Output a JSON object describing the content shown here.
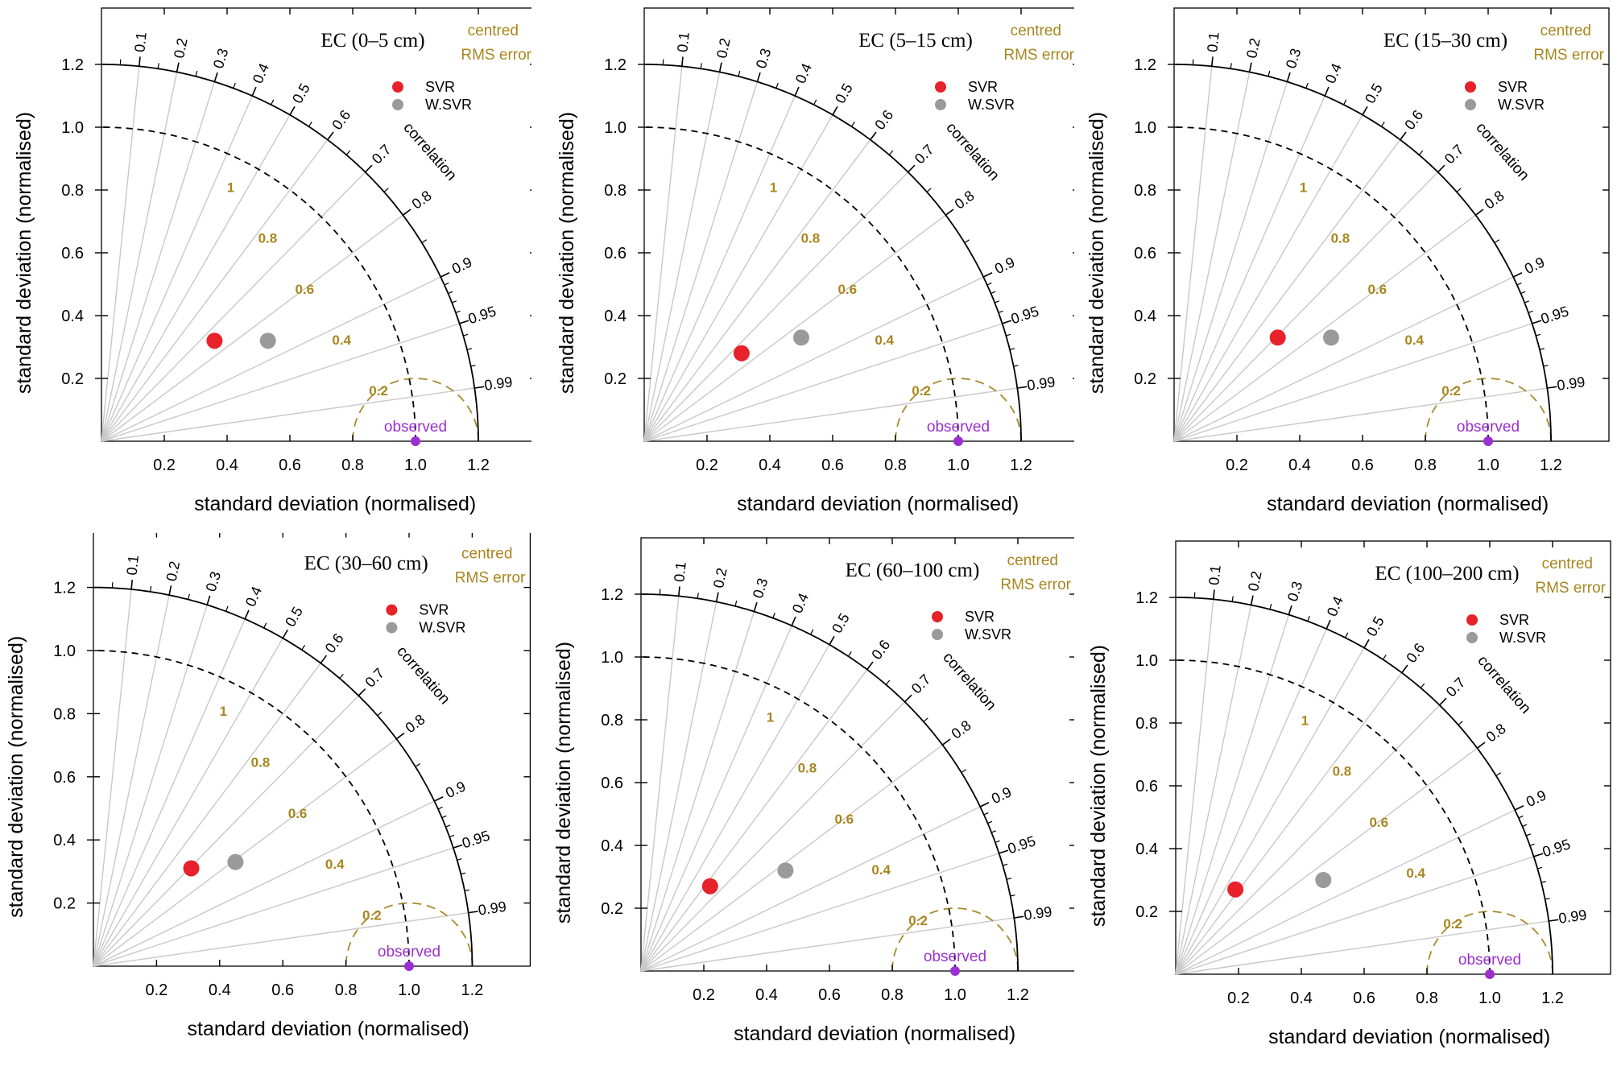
{
  "figure": {
    "legend": {
      "rms_title_line1": "centred",
      "rms_title_line2": "RMS error",
      "correlation_label": "correlation",
      "observed_label": "observed"
    },
    "colors": {
      "svr": "#e8222a",
      "wsvr": "#9a9a9a",
      "observed": "#9b30d0",
      "rms_contour": "#a88a2e",
      "rms_text": "#a8861e",
      "radial_line": "#c8c8c8",
      "axis": "#000000"
    }
  },
  "chart_data": [
    {
      "type": "scatter",
      "subtype": "taylor-diagram",
      "title": "EC (0–5 cm)",
      "xlabel": "standard deviation (normalised)",
      "ylabel": "standard deviation (normalised)",
      "xlim": [
        0,
        1.2
      ],
      "ylim": [
        0,
        1.2
      ],
      "xticks": [
        "0.2",
        "0.4",
        "0.6",
        "0.8",
        "1.0",
        "1.2"
      ],
      "yticks": [
        "0.2",
        "0.4",
        "0.6",
        "0.8",
        "1.0",
        "1.2"
      ],
      "correlation_ticks": [
        "0.1",
        "0.2",
        "0.3",
        "0.4",
        "0.5",
        "0.6",
        "0.7",
        "0.8",
        "0.9",
        "0.95",
        "0.99"
      ],
      "rms_contours": [
        "0.2",
        "0.4",
        "0.6",
        "0.8",
        "1"
      ],
      "legend_position": "top-right",
      "series": [
        {
          "name": "SVR",
          "x": 0.36,
          "y": 0.32
        },
        {
          "name": "W.SVR",
          "x": 0.53,
          "y": 0.32
        }
      ],
      "reference": {
        "name": "observed",
        "x": 1.0,
        "y": 0.0
      }
    },
    {
      "type": "scatter",
      "subtype": "taylor-diagram",
      "title": "EC (5–15 cm)",
      "xlabel": "standard deviation (normalised)",
      "ylabel": "standard deviation (normalised)",
      "xlim": [
        0,
        1.2
      ],
      "ylim": [
        0,
        1.2
      ],
      "xticks": [
        "0.2",
        "0.4",
        "0.6",
        "0.8",
        "1.0",
        "1.2"
      ],
      "yticks": [
        "0.2",
        "0.4",
        "0.6",
        "0.8",
        "1.0",
        "1.2"
      ],
      "correlation_ticks": [
        "0.1",
        "0.2",
        "0.3",
        "0.4",
        "0.5",
        "0.6",
        "0.7",
        "0.8",
        "0.9",
        "0.95",
        "0.99"
      ],
      "rms_contours": [
        "0.2",
        "0.4",
        "0.6",
        "0.8",
        "1"
      ],
      "legend_position": "top-right",
      "series": [
        {
          "name": "SVR",
          "x": 0.31,
          "y": 0.28
        },
        {
          "name": "W.SVR",
          "x": 0.5,
          "y": 0.33
        }
      ],
      "reference": {
        "name": "observed",
        "x": 1.0,
        "y": 0.0
      }
    },
    {
      "type": "scatter",
      "subtype": "taylor-diagram",
      "title": "EC (15–30 cm)",
      "xlabel": "standard deviation (normalised)",
      "ylabel": "standard deviation (normalised)",
      "xlim": [
        0,
        1.2
      ],
      "ylim": [
        0,
        1.2
      ],
      "xticks": [
        "0.2",
        "0.4",
        "0.6",
        "0.8",
        "1.0",
        "1.2"
      ],
      "yticks": [
        "0.2",
        "0.4",
        "0.6",
        "0.8",
        "1.0",
        "1.2"
      ],
      "correlation_ticks": [
        "0.1",
        "0.2",
        "0.3",
        "0.4",
        "0.5",
        "0.6",
        "0.7",
        "0.8",
        "0.9",
        "0.95",
        "0.99"
      ],
      "rms_contours": [
        "0.2",
        "0.4",
        "0.6",
        "0.8",
        "1"
      ],
      "legend_position": "top-right",
      "series": [
        {
          "name": "SVR",
          "x": 0.33,
          "y": 0.33
        },
        {
          "name": "W.SVR",
          "x": 0.5,
          "y": 0.33
        }
      ],
      "reference": {
        "name": "observed",
        "x": 1.0,
        "y": 0.0
      }
    },
    {
      "type": "scatter",
      "subtype": "taylor-diagram",
      "title": "EC (30–60 cm)",
      "xlabel": "standard deviation (normalised)",
      "ylabel": "standard deviation (normalised)",
      "xlim": [
        0,
        1.2
      ],
      "ylim": [
        0,
        1.2
      ],
      "xticks": [
        "0.2",
        "0.4",
        "0.6",
        "0.8",
        "1.0",
        "1.2"
      ],
      "yticks": [
        "0.2",
        "0.4",
        "0.6",
        "0.8",
        "1.0",
        "1.2"
      ],
      "correlation_ticks": [
        "0.1",
        "0.2",
        "0.3",
        "0.4",
        "0.5",
        "0.6",
        "0.7",
        "0.8",
        "0.9",
        "0.95",
        "0.99"
      ],
      "rms_contours": [
        "0.2",
        "0.4",
        "0.6",
        "0.8",
        "1"
      ],
      "legend_position": "top-right",
      "series": [
        {
          "name": "SVR",
          "x": 0.31,
          "y": 0.31
        },
        {
          "name": "W.SVR",
          "x": 0.45,
          "y": 0.33
        }
      ],
      "reference": {
        "name": "observed",
        "x": 1.0,
        "y": 0.0
      }
    },
    {
      "type": "scatter",
      "subtype": "taylor-diagram",
      "title": "EC (60–100 cm)",
      "xlabel": "standard deviation (normalised)",
      "ylabel": "standard deviation (normalised)",
      "xlim": [
        0,
        1.2
      ],
      "ylim": [
        0,
        1.2
      ],
      "xticks": [
        "0.2",
        "0.4",
        "0.6",
        "0.8",
        "1.0",
        "1.2"
      ],
      "yticks": [
        "0.2",
        "0.4",
        "0.6",
        "0.8",
        "1.0",
        "1.2"
      ],
      "correlation_ticks": [
        "0.1",
        "0.2",
        "0.3",
        "0.4",
        "0.5",
        "0.6",
        "0.7",
        "0.8",
        "0.9",
        "0.95",
        "0.99"
      ],
      "rms_contours": [
        "0.2",
        "0.4",
        "0.6",
        "0.8",
        "1"
      ],
      "legend_position": "top-right",
      "series": [
        {
          "name": "SVR",
          "x": 0.22,
          "y": 0.27
        },
        {
          "name": "W.SVR",
          "x": 0.46,
          "y": 0.32
        }
      ],
      "reference": {
        "name": "observed",
        "x": 1.0,
        "y": 0.0
      }
    },
    {
      "type": "scatter",
      "subtype": "taylor-diagram",
      "title": "EC (100–200 cm)",
      "xlabel": "standard deviation (normalised)",
      "ylabel": "standard deviation (normalised)",
      "xlim": [
        0,
        1.2
      ],
      "ylim": [
        0,
        1.2
      ],
      "xticks": [
        "0.2",
        "0.4",
        "0.6",
        "0.8",
        "1.0",
        "1.2"
      ],
      "yticks": [
        "0.2",
        "0.4",
        "0.6",
        "0.8",
        "1.0",
        "1.2"
      ],
      "correlation_ticks": [
        "0.1",
        "0.2",
        "0.3",
        "0.4",
        "0.5",
        "0.6",
        "0.7",
        "0.8",
        "0.9",
        "0.95",
        "0.99"
      ],
      "rms_contours": [
        "0.2",
        "0.4",
        "0.6",
        "0.8",
        "1"
      ],
      "legend_position": "top-right",
      "series": [
        {
          "name": "SVR",
          "x": 0.19,
          "y": 0.27
        },
        {
          "name": "W.SVR",
          "x": 0.47,
          "y": 0.3
        }
      ],
      "reference": {
        "name": "observed",
        "x": 1.0,
        "y": 0.0
      }
    }
  ]
}
